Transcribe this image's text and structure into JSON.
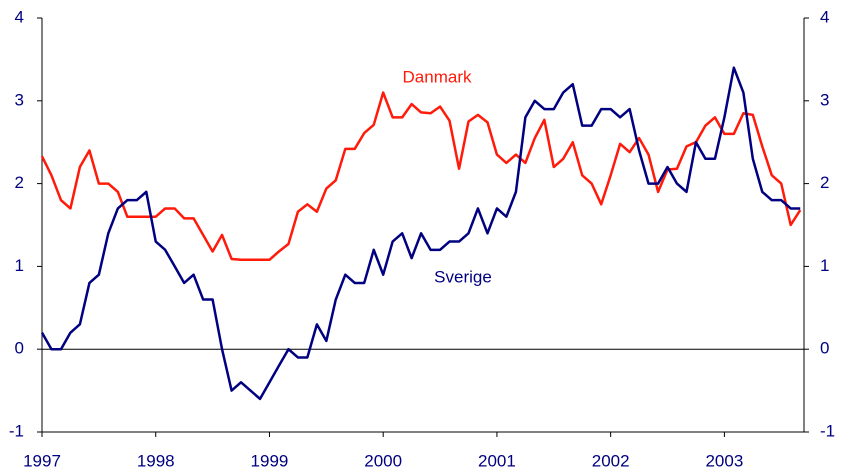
{
  "chart_data": {
    "type": "line",
    "x": [
      1997,
      1997.083,
      1997.167,
      1997.25,
      1997.333,
      1997.417,
      1997.5,
      1997.583,
      1997.667,
      1997.75,
      1997.833,
      1997.917,
      1998,
      1998.083,
      1998.167,
      1998.25,
      1998.333,
      1998.417,
      1998.5,
      1998.583,
      1998.667,
      1998.75,
      1998.833,
      1998.917,
      1999,
      1999.083,
      1999.167,
      1999.25,
      1999.333,
      1999.417,
      1999.5,
      1999.583,
      1999.667,
      1999.75,
      1999.833,
      1999.917,
      2000,
      2000.083,
      2000.167,
      2000.25,
      2000.333,
      2000.417,
      2000.5,
      2000.583,
      2000.667,
      2000.75,
      2000.833,
      2000.917,
      2001,
      2001.083,
      2001.167,
      2001.25,
      2001.333,
      2001.417,
      2001.5,
      2001.583,
      2001.667,
      2001.75,
      2001.833,
      2001.917,
      2002,
      2002.083,
      2002.167,
      2002.25,
      2002.333,
      2002.417,
      2002.5,
      2002.583,
      2002.667,
      2002.75,
      2002.833,
      2002.917,
      2003,
      2003.083,
      2003.167,
      2003.25,
      2003.333,
      2003.417,
      2003.5,
      2003.583,
      2003.667
    ],
    "series": [
      {
        "name": "Danmark",
        "color": "#ff1a0a",
        "values": [
          2.33,
          2.1,
          1.8,
          1.7,
          2.2,
          2.4,
          2.0,
          2.0,
          1.9,
          1.6,
          1.6,
          1.6,
          1.6,
          1.7,
          1.7,
          1.58,
          1.58,
          1.38,
          1.18,
          1.38,
          1.09,
          1.08,
          1.08,
          1.08,
          1.08,
          1.18,
          1.27,
          1.66,
          1.75,
          1.66,
          1.94,
          2.04,
          2.42,
          2.42,
          2.61,
          2.71,
          3.1,
          2.8,
          2.8,
          2.96,
          2.86,
          2.85,
          2.93,
          2.76,
          2.18,
          2.75,
          2.83,
          2.74,
          2.35,
          2.25,
          2.35,
          2.25,
          2.55,
          2.77,
          2.2,
          2.3,
          2.5,
          2.1,
          2.0,
          1.75,
          2.1,
          2.48,
          2.38,
          2.55,
          2.35,
          1.9,
          2.17,
          2.18,
          2.45,
          2.5,
          2.7,
          2.8,
          2.6,
          2.6,
          2.85,
          2.83,
          2.45,
          2.1,
          2.0,
          1.5,
          1.68
        ]
      },
      {
        "name": "Sverige",
        "color": "#000080",
        "values": [
          0.2,
          0.0,
          0.0,
          0.2,
          0.3,
          0.8,
          0.9,
          1.4,
          1.7,
          1.8,
          1.8,
          1.9,
          1.3,
          1.2,
          1.0,
          0.8,
          0.9,
          0.6,
          0.6,
          0.0,
          -0.5,
          -0.4,
          -0.5,
          -0.6,
          -0.4,
          -0.2,
          0.0,
          -0.1,
          -0.1,
          0.3,
          0.1,
          0.6,
          0.9,
          0.8,
          0.8,
          1.2,
          0.9,
          1.3,
          1.4,
          1.1,
          1.4,
          1.2,
          1.2,
          1.3,
          1.3,
          1.4,
          1.7,
          1.4,
          1.7,
          1.6,
          1.9,
          2.8,
          3.0,
          2.9,
          2.9,
          3.1,
          3.2,
          2.7,
          2.7,
          2.9,
          2.9,
          2.8,
          2.9,
          2.4,
          2.0,
          2.0,
          2.2,
          2.0,
          1.9,
          2.5,
          2.3,
          2.3,
          2.8,
          3.4,
          3.1,
          2.3,
          1.9,
          1.8,
          1.8,
          1.7,
          1.7
        ]
      }
    ],
    "xlim": [
      1997,
      2003.7
    ],
    "xticks": [
      1997,
      1998,
      1999,
      2000,
      2001,
      2002,
      2003
    ],
    "ylim": [
      -1,
      4
    ],
    "yticks": [
      -1,
      0,
      1,
      2,
      3,
      4
    ],
    "y2lim": [
      -1,
      4
    ],
    "y2ticks": [
      -1,
      0,
      1,
      2,
      3,
      4
    ],
    "reference_line": 0
  }
}
